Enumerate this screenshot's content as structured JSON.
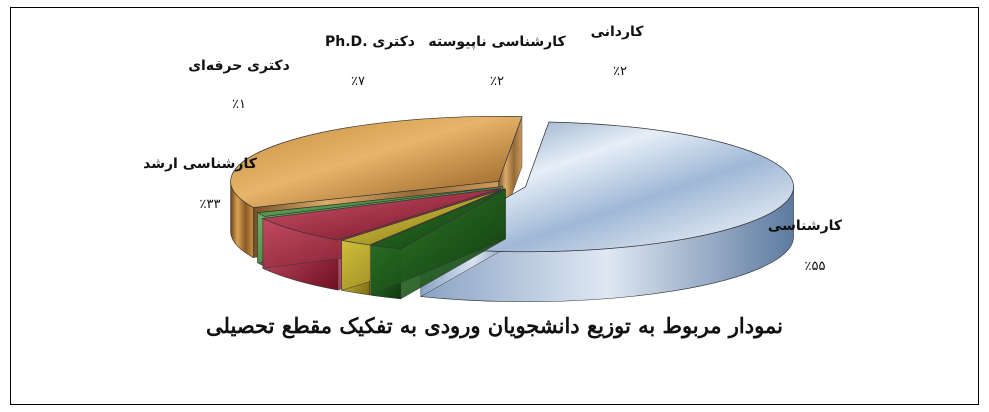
{
  "chart_data": {
    "type": "pie",
    "style": "3d-exploded",
    "title": "نمودار مربوط به توزیع دانشجویان ورودی به تفکیک مقطع تحصیلی",
    "slices": [
      {
        "label": "کارشناسی",
        "value": 55,
        "value_label": "٪۵۵",
        "color": "#b9cfe6"
      },
      {
        "label": "کاردانی",
        "value": 2,
        "value_label": "٪۲",
        "color": "#1f5a1a"
      },
      {
        "label": "کارشناسی ناپیوسته",
        "value": 2,
        "value_label": "٪۲",
        "color": "#c9b32a"
      },
      {
        "label": "دکتری .Ph.D",
        "value": 7,
        "value_label": "٪۷",
        "color": "#a81e3a"
      },
      {
        "label": "دکتری حرفه‌ای",
        "value": 1,
        "value_label": "٪۱",
        "color": "#3f8a3a"
      },
      {
        "label": "کارشناسی ارشد",
        "value": 33,
        "value_label": "٪۳۳",
        "color": "#b07a2a"
      }
    ]
  }
}
